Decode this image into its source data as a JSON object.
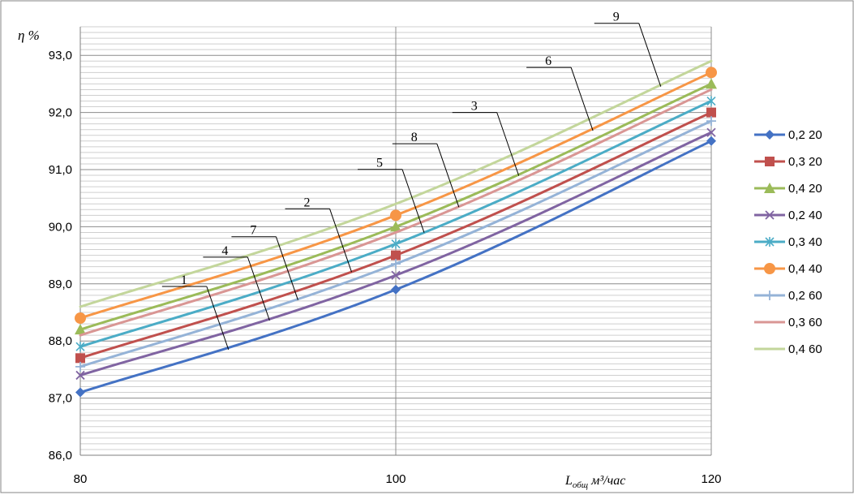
{
  "chart_data": {
    "type": "line",
    "ylabel": "η %",
    "xlabel_main": "L",
    "xlabel_sub": "общ",
    "xlabel_unit": "м³/час",
    "x": [
      80,
      100,
      120
    ],
    "xlim": [
      80,
      120
    ],
    "ylim": [
      86.0,
      93.5
    ],
    "y_ticks": [
      "86,0",
      "87,0",
      "88,0",
      "89,0",
      "90,0",
      "91,0",
      "92,0",
      "93,0"
    ],
    "x_ticks": [
      "80",
      "100",
      "120"
    ],
    "grid": true,
    "legend_position": "right",
    "series": [
      {
        "name": "0,2 20",
        "color": "#4472C4",
        "marker": "diamond",
        "values": [
          87.1,
          88.9,
          91.5
        ]
      },
      {
        "name": "0,3 20",
        "color": "#C0504D",
        "marker": "square",
        "values": [
          87.7,
          89.5,
          92.0
        ]
      },
      {
        "name": "0,4 20",
        "color": "#9BBB59",
        "marker": "triangle",
        "values": [
          88.2,
          90.0,
          92.5
        ]
      },
      {
        "name": "0,2 40",
        "color": "#8064A2",
        "marker": "x",
        "values": [
          87.4,
          89.15,
          91.65
        ]
      },
      {
        "name": "0,3 40",
        "color": "#4BACC6",
        "marker": "star",
        "values": [
          87.9,
          89.7,
          92.2
        ]
      },
      {
        "name": "0,4 40",
        "color": "#F79646",
        "marker": "circle",
        "values": [
          88.4,
          90.2,
          92.7
        ]
      },
      {
        "name": "0,2 60",
        "color": "#95B3D7",
        "marker": "plus",
        "values": [
          87.55,
          89.35,
          91.85
        ]
      },
      {
        "name": "0,3 60",
        "color": "#D99694",
        "marker": "none",
        "values": [
          88.1,
          89.9,
          92.4
        ]
      },
      {
        "name": "0,4 60",
        "color": "#C3D69B",
        "marker": "none",
        "values": [
          88.6,
          90.4,
          92.9
        ]
      }
    ],
    "annotations": [
      {
        "label": "1",
        "series": 0,
        "at_x": 89.4
      },
      {
        "label": "4",
        "series": 3,
        "at_x": 92.0
      },
      {
        "label": "7",
        "series": 6,
        "at_x": 93.8
      },
      {
        "label": "2",
        "series": 1,
        "at_x": 97.2
      },
      {
        "label": "5",
        "series": 4,
        "at_x": 101.8
      },
      {
        "label": "8",
        "series": 7,
        "at_x": 104.0
      },
      {
        "label": "3",
        "series": 2,
        "at_x": 107.8
      },
      {
        "label": "6",
        "series": 5,
        "at_x": 112.5
      },
      {
        "label": "9",
        "series": 8,
        "at_x": 116.8
      }
    ]
  }
}
